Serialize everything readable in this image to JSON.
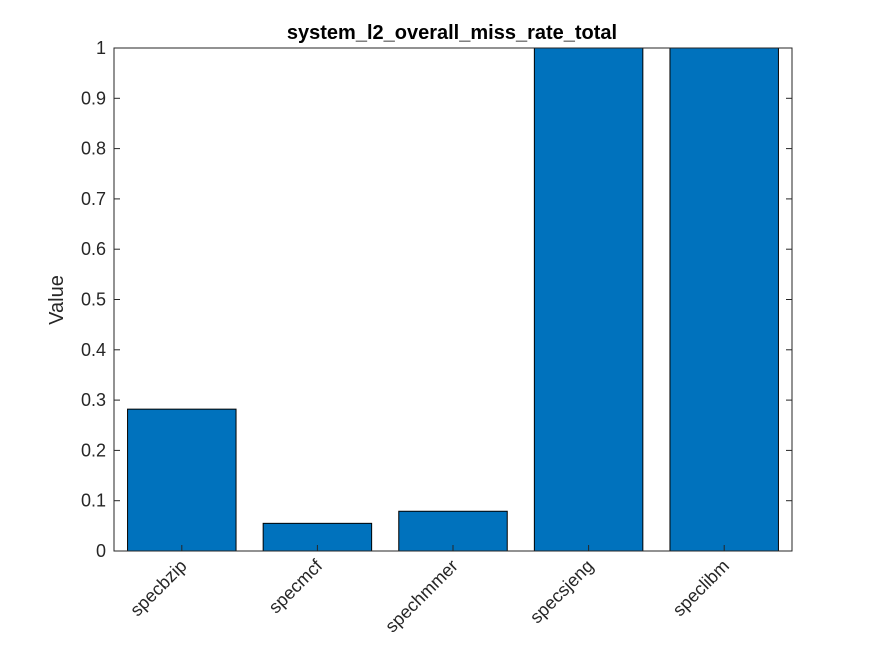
{
  "chart_data": {
    "type": "bar",
    "title": "system_l2_overall_miss_rate_total",
    "xlabel": "",
    "ylabel": "Value",
    "categories": [
      "specbzip",
      "specmcf",
      "spechmmer",
      "specsjeng",
      "speclibm"
    ],
    "values": [
      0.282,
      0.055,
      0.079,
      1.0,
      1.0
    ],
    "ylim": [
      0,
      1
    ],
    "yticks": [
      "0",
      "0.1",
      "0.2",
      "0.3",
      "0.4",
      "0.5",
      "0.6",
      "0.7",
      "0.8",
      "0.9",
      "1"
    ],
    "grid": false,
    "legend": "none",
    "bar_color": "#0072BD"
  }
}
